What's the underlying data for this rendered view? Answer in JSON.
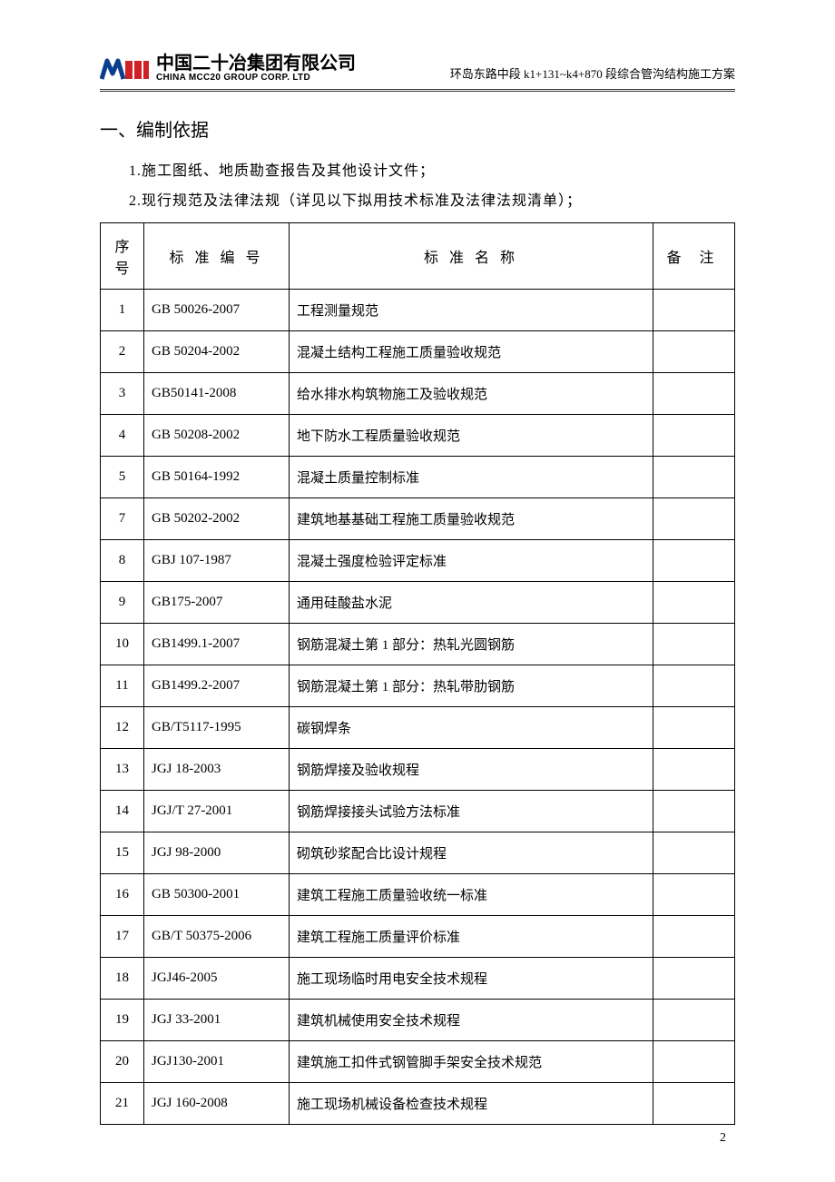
{
  "header": {
    "company_cn": "中国二十冶集团有限公司",
    "company_en": "CHINA MCC20 GROUP CORP. LTD",
    "doc_title": "环岛东路中段 k1+131~k4+870 段综合管沟结构施工方案",
    "logo_text": "MCC"
  },
  "section": {
    "title": "一、编制依据",
    "line1": "1.施工图纸、地质勘查报告及其他设计文件；",
    "line2": "2.现行规范及法律法规（详见以下拟用技术标准及法律法规清单）；"
  },
  "table": {
    "columns": [
      "序号",
      "标 准 编 号",
      "标 准 名 称",
      "备 注"
    ],
    "rows": [
      {
        "seq": "1",
        "code": "GB 50026-2007",
        "name": "工程测量规范",
        "note": ""
      },
      {
        "seq": "2",
        "code": "GB 50204-2002",
        "name": "混凝土结构工程施工质量验收规范",
        "note": ""
      },
      {
        "seq": "3",
        "code": "GB50141-2008",
        "name": "给水排水构筑物施工及验收规范",
        "note": ""
      },
      {
        "seq": "4",
        "code": "GB 50208-2002",
        "name": "地下防水工程质量验收规范",
        "note": ""
      },
      {
        "seq": "5",
        "code": "GB 50164-1992",
        "name": "混凝土质量控制标准",
        "note": ""
      },
      {
        "seq": "7",
        "code": "GB 50202-2002",
        "name": "建筑地基基础工程施工质量验收规范",
        "note": ""
      },
      {
        "seq": "8",
        "code": "GBJ 107-1987",
        "name": "混凝土强度检验评定标准",
        "note": ""
      },
      {
        "seq": "9",
        "code": "GB175-2007",
        "name": "通用硅酸盐水泥",
        "note": ""
      },
      {
        "seq": "10",
        "code": "GB1499.1-2007",
        "name": "钢筋混凝土第 1 部分：热轧光圆钢筋",
        "note": ""
      },
      {
        "seq": "11",
        "code": "GB1499.2-2007",
        "name": "钢筋混凝土第 1 部分：热轧带肋钢筋",
        "note": ""
      },
      {
        "seq": "12",
        "code": "GB/T5117-1995",
        "name": "碳钢焊条",
        "note": ""
      },
      {
        "seq": "13",
        "code": "JGJ 18-2003",
        "name": "钢筋焊接及验收规程",
        "note": ""
      },
      {
        "seq": "14",
        "code": "JGJ/T 27-2001",
        "name": "钢筋焊接接头试验方法标准",
        "note": ""
      },
      {
        "seq": "15",
        "code": "JGJ 98-2000",
        "name": "砌筑砂浆配合比设计规程",
        "note": ""
      },
      {
        "seq": "16",
        "code": "GB 50300-2001",
        "name": "建筑工程施工质量验收统一标准",
        "note": ""
      },
      {
        "seq": "17",
        "code": "GB/T 50375-2006",
        "name": "建筑工程施工质量评价标准",
        "note": ""
      },
      {
        "seq": "18",
        "code": "JGJ46-2005",
        "name": "施工现场临时用电安全技术规程",
        "note": ""
      },
      {
        "seq": "19",
        "code": "JGJ 33-2001",
        "name": "建筑机械使用安全技术规程",
        "note": ""
      },
      {
        "seq": "20",
        "code": "JGJ130-2001",
        "name": "建筑施工扣件式钢管脚手架安全技术规范",
        "note": ""
      },
      {
        "seq": "21",
        "code": "JGJ 160-2008",
        "name": "施工现场机械设备检查技术规程",
        "note": ""
      }
    ]
  },
  "page_number": "2",
  "colors": {
    "logo_blue": "#0a3f8f",
    "logo_red": "#d02127",
    "text": "#000000",
    "border": "#000000",
    "header_rule": "#333333"
  }
}
